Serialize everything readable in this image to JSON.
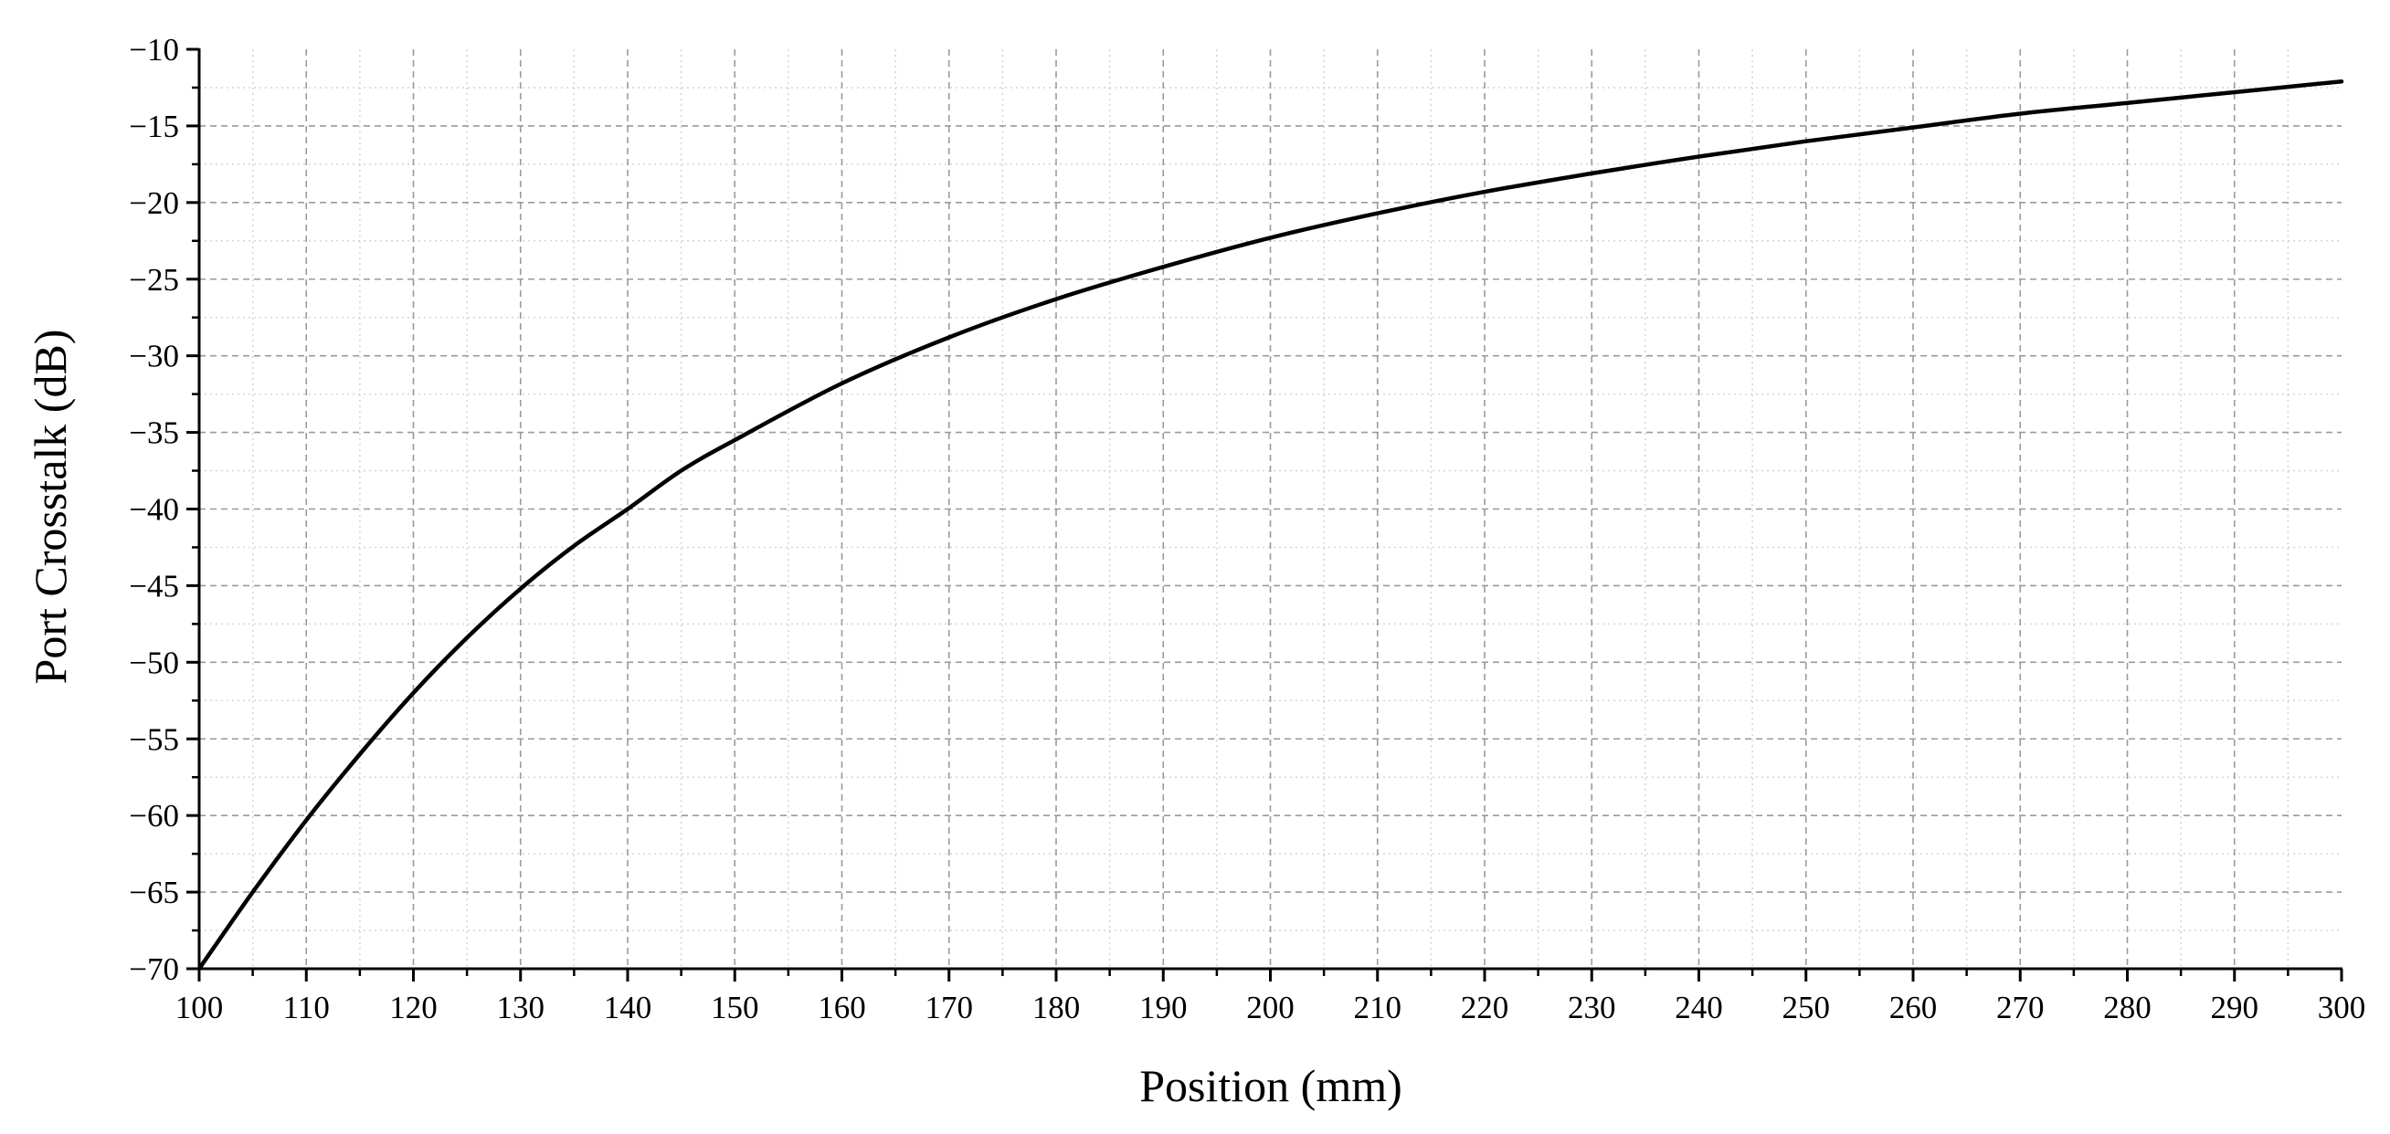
{
  "chart_data": {
    "type": "line",
    "title": "",
    "xlabel": "Position (mm)",
    "ylabel": "Port Crosstalk (dB)",
    "xlim": [
      100,
      300
    ],
    "ylim": [
      -70,
      -10
    ],
    "x_ticks": [
      100,
      110,
      120,
      130,
      140,
      150,
      160,
      170,
      180,
      190,
      200,
      210,
      220,
      230,
      240,
      250,
      260,
      270,
      280,
      290,
      300
    ],
    "y_ticks": [
      -70,
      -65,
      -60,
      -55,
      -50,
      -45,
      -40,
      -35,
      -30,
      -25,
      -20,
      -15,
      -10
    ],
    "x_tick_labels": [
      "100",
      "110",
      "120",
      "130",
      "140",
      "150",
      "160",
      "170",
      "180",
      "190",
      "200",
      "210",
      "220",
      "230",
      "240",
      "250",
      "260",
      "270",
      "280",
      "290",
      "300"
    ],
    "y_tick_labels": [
      "−70",
      "−65",
      "−60",
      "−55",
      "−50",
      "−45",
      "−40",
      "−35",
      "−30",
      "−25",
      "−20",
      "−15",
      "−10"
    ],
    "grid": true,
    "minor_grid": true,
    "series": [
      {
        "color": "#000000",
        "x": [
          100,
          105,
          110,
          115,
          120,
          125,
          130,
          135,
          140,
          145,
          150,
          160,
          170,
          180,
          190,
          200,
          210,
          220,
          230,
          240,
          250,
          260,
          270,
          280,
          290,
          300
        ],
        "y": [
          -70,
          -65,
          -60.3,
          -56,
          -52,
          -48.4,
          -45.2,
          -42.4,
          -40,
          -37.5,
          -35.5,
          -31.8,
          -28.8,
          -26.3,
          -24.2,
          -22.3,
          -20.7,
          -19.3,
          -18.1,
          -17,
          -16,
          -15.1,
          -14.2,
          -13.5,
          -12.8,
          -12.1
        ]
      }
    ]
  }
}
